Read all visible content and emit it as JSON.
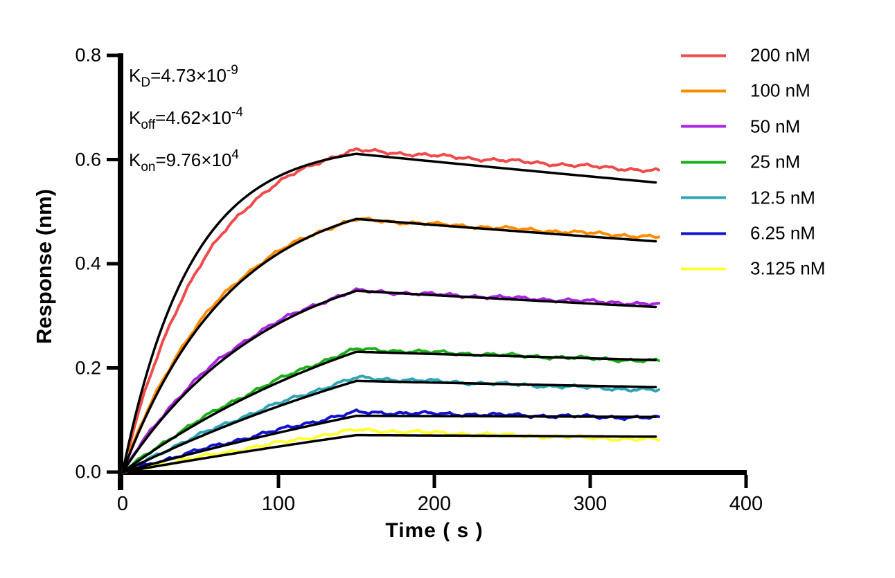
{
  "figure": {
    "background_color": "#FFFFFF",
    "axis_color": "#000000"
  },
  "chart_data": {
    "type": "line",
    "title": "",
    "xlabel": "Time ( s )",
    "ylabel": "Response (nm)",
    "xlim": [
      0,
      400
    ],
    "ylim": [
      0,
      0.8
    ],
    "xticks": [
      "0",
      "100",
      "200",
      "300",
      "400"
    ],
    "yticks": [
      "0.0",
      "0.2",
      "0.4",
      "0.6",
      "0.8"
    ],
    "grid": false,
    "legend_position": "outside-top-right",
    "annotations": [
      {
        "base": "K",
        "sub": "D",
        "mid": "=4.73×10",
        "sup": "-9"
      },
      {
        "base": "K",
        "sub": "off",
        "mid": "=4.62×10",
        "sup": "-4"
      },
      {
        "base": "K",
        "sub": "on",
        "mid": "=9.76×10",
        "sup": "4"
      }
    ],
    "phases": {
      "association_s": [
        0,
        150
      ],
      "dissociation_s": [
        150,
        344
      ]
    },
    "fit_line_color": "#000000",
    "series": [
      {
        "label": "200 nM",
        "color": "#EF4B4B",
        "peak_nm": 0.618,
        "end_nm": 0.578,
        "rise_rate": 0.0185,
        "fit": {
          "peak_nm": 0.611,
          "end_nm": 0.556,
          "rise_rate": 0.023
        }
      },
      {
        "label": "100 nM",
        "color": "#FF8C00",
        "peak_nm": 0.485,
        "end_nm": 0.451,
        "rise_rate": 0.0155,
        "fit": {
          "peak_nm": 0.486,
          "end_nm": 0.443,
          "rise_rate": 0.0145
        }
      },
      {
        "label": "50 nM",
        "color": "#A826E0",
        "peak_nm": 0.348,
        "end_nm": 0.322,
        "rise_rate": 0.0115,
        "fit": {
          "peak_nm": 0.348,
          "end_nm": 0.317,
          "rise_rate": 0.0105
        }
      },
      {
        "label": "25 nM",
        "color": "#1CAE1C",
        "peak_nm": 0.236,
        "end_nm": 0.213,
        "rise_rate": 0.0055,
        "fit": {
          "peak_nm": 0.231,
          "end_nm": 0.215,
          "rise_rate": 0.005
        }
      },
      {
        "label": "12.5 nM",
        "color": "#2FA5B4",
        "peak_nm": 0.181,
        "end_nm": 0.157,
        "rise_rate": 0.0038,
        "fit": {
          "peak_nm": 0.175,
          "end_nm": 0.163,
          "rise_rate": 0.0034
        }
      },
      {
        "label": "6.25 nM",
        "color": "#1212D0",
        "peak_nm": 0.115,
        "end_nm": 0.104,
        "rise_rate": 0.0022,
        "fit": {
          "peak_nm": 0.108,
          "end_nm": 0.106,
          "rise_rate": 0.002
        }
      },
      {
        "label": "3.125 nM",
        "color": "#FFFF33",
        "peak_nm": 0.081,
        "end_nm": 0.062,
        "rise_rate": 0.0016,
        "fit": {
          "peak_nm": 0.071,
          "end_nm": 0.068,
          "rise_rate": 0.0014
        }
      }
    ]
  }
}
